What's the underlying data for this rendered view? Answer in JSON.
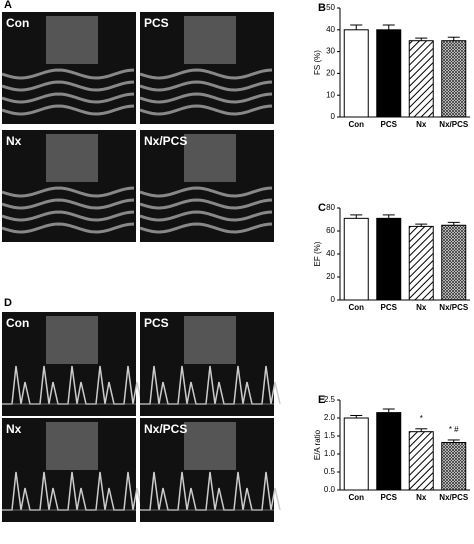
{
  "panel_A": {
    "label": "A",
    "images": [
      "Con",
      "PCS",
      "Nx",
      "Nx/PCS"
    ]
  },
  "panel_D": {
    "label": "D",
    "images": [
      "Con",
      "PCS",
      "Nx",
      "Nx/PCS"
    ]
  },
  "chart_data": [
    {
      "type": "bar",
      "panel_label": "B",
      "ylabel": "FS (%)",
      "categories": [
        "Con",
        "PCS",
        "Nx",
        "Nx/PCS"
      ],
      "values": [
        40,
        40,
        35,
        35
      ],
      "errors": [
        2.2,
        2.2,
        1.2,
        1.6
      ],
      "fills": [
        "white",
        "black",
        "hatch",
        "crosshatch"
      ],
      "ylim": [
        0,
        50
      ],
      "yticks": [
        0,
        10,
        20,
        30,
        40,
        50
      ]
    },
    {
      "type": "bar",
      "panel_label": "C",
      "ylabel": "EF (%)",
      "categories": [
        "Con",
        "PCS",
        "Nx",
        "Nx/PCS"
      ],
      "values": [
        71,
        71,
        64,
        65
      ],
      "errors": [
        3,
        3,
        2,
        2.5
      ],
      "fills": [
        "white",
        "black",
        "hatch",
        "crosshatch"
      ],
      "ylim": [
        0,
        80
      ],
      "yticks": [
        0,
        20,
        40,
        60,
        80
      ]
    },
    {
      "type": "bar",
      "panel_label": "E",
      "ylabel": "E/A ratio",
      "categories": [
        "Con",
        "PCS",
        "Nx",
        "Nx/PCS"
      ],
      "values": [
        2.0,
        2.15,
        1.62,
        1.32
      ],
      "errors": [
        0.07,
        0.1,
        0.08,
        0.07
      ],
      "fills": [
        "white",
        "black",
        "hatch",
        "crosshatch"
      ],
      "ylim": [
        0,
        2.5
      ],
      "yticks": [
        {
          "value": 0,
          "label": "0.0"
        },
        0.5,
        {
          "value": 1,
          "label": "1.0"
        },
        1.5,
        {
          "value": 2,
          "label": "2.0"
        },
        2.5
      ],
      "annotations": [
        {
          "category": "Nx",
          "text": "*"
        },
        {
          "category": "Nx/PCS",
          "text": "* #"
        }
      ]
    }
  ]
}
